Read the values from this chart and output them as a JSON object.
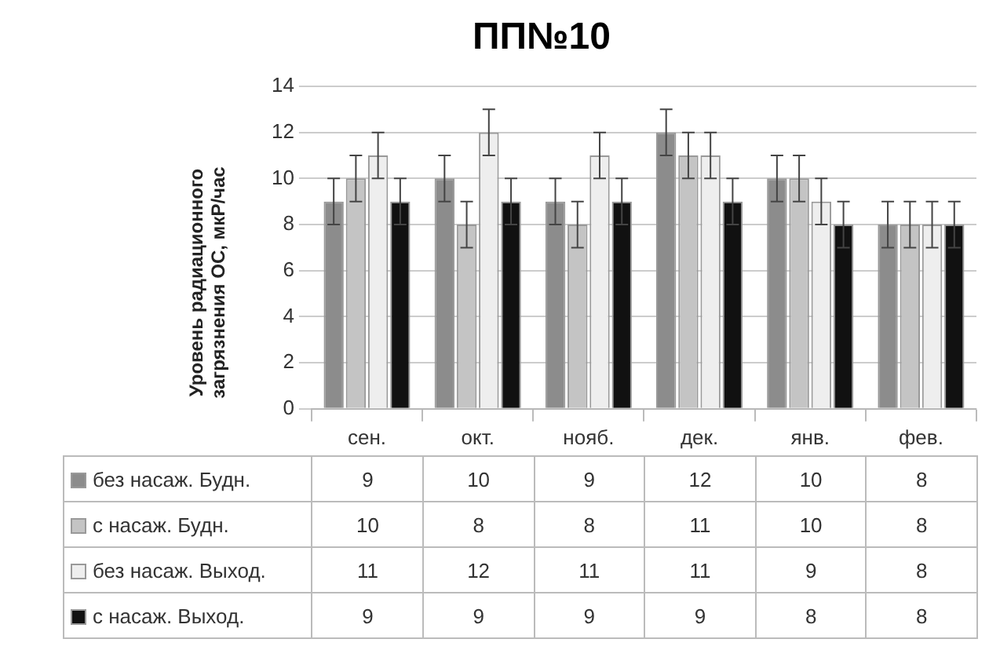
{
  "chart_data": {
    "type": "bar",
    "title": "ПП№10",
    "ylabel": "Уровень радиационного загрязнения ОС, мкР/час",
    "categories": [
      "сен.",
      "окт.",
      "нояб.",
      "дек.",
      "янв.",
      "фев."
    ],
    "series": [
      {
        "name": "без насаж. Будн.",
        "color": "#8c8c8c",
        "values": [
          9,
          10,
          9,
          12,
          10,
          8
        ],
        "errors": [
          1,
          1,
          1,
          1,
          1,
          1
        ]
      },
      {
        "name": "с насаж. Будн.",
        "color": "#c4c4c4",
        "values": [
          10,
          8,
          8,
          11,
          10,
          8
        ],
        "errors": [
          1,
          1,
          1,
          1,
          1,
          1
        ]
      },
      {
        "name": "без насаж. Выход.",
        "color": "#eeeeee",
        "values": [
          11,
          12,
          11,
          11,
          9,
          8
        ],
        "errors": [
          1,
          1,
          1,
          1,
          1,
          1
        ]
      },
      {
        "name": "с насаж. Выход.",
        "color": "#111111",
        "values": [
          9,
          9,
          9,
          9,
          8,
          8
        ],
        "errors": [
          1,
          1,
          1,
          1,
          1,
          1
        ]
      }
    ],
    "ylim": [
      0,
      14
    ],
    "yticks": [
      0,
      2,
      4,
      6,
      8,
      10,
      12,
      14
    ],
    "grid": "y",
    "legend": "bottom",
    "data_labels": true
  }
}
